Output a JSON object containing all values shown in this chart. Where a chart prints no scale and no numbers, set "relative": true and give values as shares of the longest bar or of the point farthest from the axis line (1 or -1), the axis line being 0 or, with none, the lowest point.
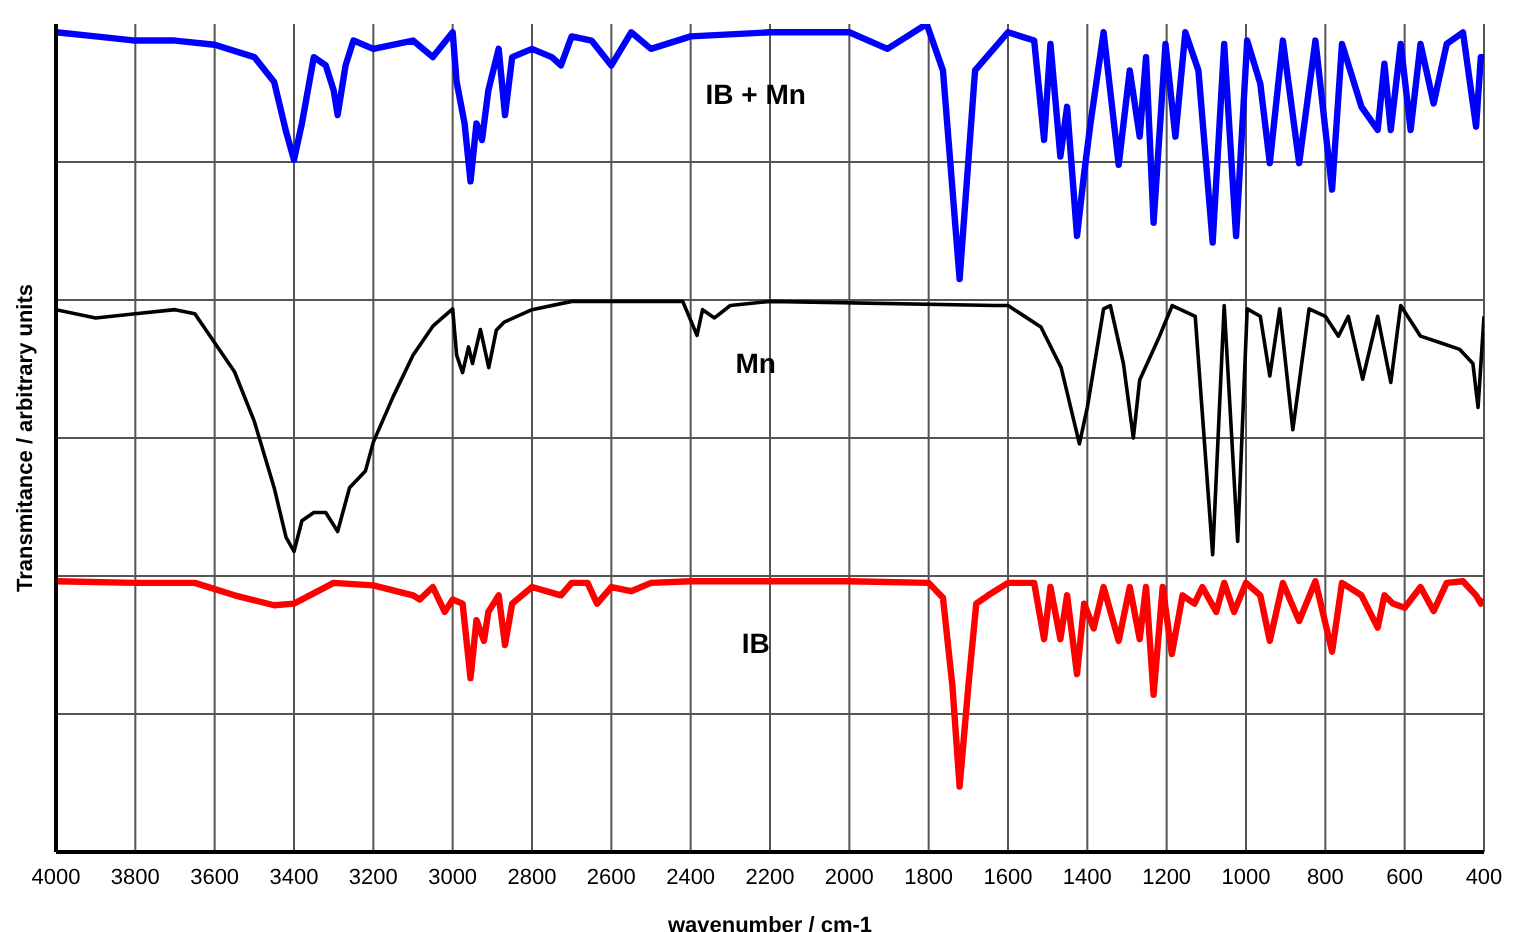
{
  "chart_data": {
    "type": "line",
    "relative": true,
    "xlabel": "wavenumber / cm-1",
    "ylabel": "Transmitance / arbitrary units",
    "xlim": [
      4000,
      400
    ],
    "xticks": [
      4000,
      3800,
      3600,
      3400,
      3200,
      3000,
      2800,
      2600,
      2400,
      2200,
      2000,
      1800,
      1600,
      1400,
      1200,
      1000,
      800,
      600,
      400
    ],
    "grid": true,
    "marker": "none",
    "line_style": "solid",
    "series": [
      {
        "name": "IB + Mn",
        "color": "#0000ff",
        "x": [
          4000,
          3900,
          3800,
          3700,
          3600,
          3500,
          3450,
          3420,
          3400,
          3380,
          3350,
          3320,
          3300,
          3290,
          3270,
          3250,
          3200,
          3100,
          3050,
          3000,
          2990,
          2970,
          2955,
          2940,
          2926,
          2910,
          2884,
          2868,
          2850,
          2800,
          2750,
          2727,
          2700,
          2650,
          2600,
          2550,
          2500,
          2400,
          2200,
          2000,
          1904,
          1805,
          1764,
          1722,
          1683,
          1600,
          1534,
          1509,
          1493,
          1468,
          1451,
          1426,
          1408,
          1392,
          1359,
          1321,
          1293,
          1268,
          1252,
          1233,
          1203,
          1178,
          1153,
          1120,
          1084,
          1055,
          1025,
          997,
          964,
          940,
          907,
          866,
          825,
          783,
          758,
          709,
          668,
          651,
          635,
          610,
          585,
          560,
          527,
          494,
          453,
          420,
          408,
          400
        ],
        "values": [
          0.99,
          0.985,
          0.98,
          0.98,
          0.975,
          0.96,
          0.93,
          0.87,
          0.836,
          0.88,
          0.96,
          0.95,
          0.92,
          0.89,
          0.95,
          0.98,
          0.97,
          0.98,
          0.96,
          0.99,
          0.93,
          0.88,
          0.81,
          0.88,
          0.86,
          0.92,
          0.97,
          0.89,
          0.96,
          0.97,
          0.96,
          0.95,
          0.985,
          0.98,
          0.95,
          0.99,
          0.97,
          0.985,
          0.99,
          0.99,
          0.97,
          1,
          0.944,
          0.692,
          0.944,
          0.99,
          0.98,
          0.86,
          0.976,
          0.84,
          0.9,
          0.744,
          0.82,
          0.88,
          0.99,
          0.83,
          0.944,
          0.864,
          0.96,
          0.76,
          0.976,
          0.864,
          0.99,
          0.944,
          0.736,
          0.976,
          0.744,
          0.98,
          0.928,
          0.832,
          0.98,
          0.832,
          0.98,
          0.8,
          0.976,
          0.9,
          0.872,
          0.952,
          0.872,
          0.976,
          0.872,
          0.976,
          0.904,
          0.976,
          0.99,
          0.876,
          0.96,
          0.96
        ]
      },
      {
        "name": "Mn",
        "color": "#000000",
        "x": [
          4000,
          3900,
          3800,
          3700,
          3650,
          3600,
          3550,
          3500,
          3450,
          3420,
          3400,
          3380,
          3350,
          3320,
          3290,
          3260,
          3220,
          3200,
          3150,
          3100,
          3050,
          3000,
          2990,
          2975,
          2960,
          2950,
          2930,
          2909,
          2890,
          2870,
          2800,
          2700,
          2600,
          2420,
          2384,
          2370,
          2340,
          2300,
          2200,
          1633,
          1600,
          1517,
          1466,
          1420,
          1400,
          1359,
          1342,
          1309,
          1284,
          1268,
          1218,
          1186,
          1128,
          1084,
          1055,
          1021,
          997,
          964,
          940,
          915,
          882,
          841,
          800,
          767,
          742,
          706,
          668,
          635,
          610,
          560,
          510,
          461,
          428,
          415,
          400
        ],
        "values": [
          0.655,
          0.645,
          0.65,
          0.655,
          0.65,
          0.615,
          0.58,
          0.52,
          0.44,
          0.38,
          0.363,
          0.4,
          0.41,
          0.41,
          0.387,
          0.44,
          0.46,
          0.495,
          0.55,
          0.6,
          0.635,
          0.656,
          0.6,
          0.579,
          0.61,
          0.59,
          0.631,
          0.585,
          0.63,
          0.64,
          0.655,
          0.665,
          0.665,
          0.665,
          0.624,
          0.655,
          0.645,
          0.66,
          0.665,
          0.66,
          0.66,
          0.634,
          0.585,
          0.493,
          0.537,
          0.656,
          0.66,
          0.59,
          0.5,
          0.57,
          0.623,
          0.66,
          0.647,
          0.359,
          0.66,
          0.375,
          0.656,
          0.647,
          0.575,
          0.656,
          0.51,
          0.656,
          0.647,
          0.623,
          0.647,
          0.571,
          0.647,
          0.567,
          0.66,
          0.623,
          0.615,
          0.607,
          0.59,
          0.537,
          0.647
        ]
      },
      {
        "name": "IB",
        "color": "#ff0000",
        "x": [
          4000,
          3800,
          3650,
          3550,
          3450,
          3400,
          3300,
          3200,
          3100,
          3083,
          3050,
          3020,
          3000,
          2975,
          2955,
          2940,
          2921,
          2910,
          2884,
          2868,
          2850,
          2800,
          2727,
          2700,
          2660,
          2636,
          2600,
          2550,
          2500,
          2400,
          2000,
          1800,
          1764,
          1740,
          1722,
          1700,
          1680,
          1650,
          1600,
          1534,
          1509,
          1493,
          1468,
          1451,
          1426,
          1408,
          1384,
          1359,
          1321,
          1293,
          1268,
          1252,
          1233,
          1210,
          1187,
          1160,
          1130,
          1110,
          1075,
          1055,
          1030,
          1000,
          964,
          940,
          907,
          866,
          825,
          783,
          758,
          709,
          668,
          651,
          630,
          600,
          560,
          527,
          494,
          453,
          420,
          408,
          400
        ],
        "values": [
          0.327,
          0.325,
          0.325,
          0.31,
          0.298,
          0.3,
          0.325,
          0.322,
          0.31,
          0.305,
          0.32,
          0.29,
          0.305,
          0.3,
          0.21,
          0.28,
          0.255,
          0.29,
          0.31,
          0.25,
          0.3,
          0.32,
          0.31,
          0.325,
          0.325,
          0.3,
          0.32,
          0.315,
          0.325,
          0.327,
          0.327,
          0.325,
          0.307,
          0.2,
          0.079,
          0.2,
          0.3,
          0.31,
          0.325,
          0.325,
          0.257,
          0.32,
          0.257,
          0.31,
          0.215,
          0.3,
          0.27,
          0.32,
          0.255,
          0.32,
          0.257,
          0.32,
          0.19,
          0.32,
          0.239,
          0.31,
          0.3,
          0.32,
          0.29,
          0.325,
          0.29,
          0.325,
          0.31,
          0.255,
          0.325,
          0.279,
          0.327,
          0.242,
          0.325,
          0.31,
          0.271,
          0.31,
          0.3,
          0.295,
          0.32,
          0.291,
          0.325,
          0.327,
          0.31,
          0.3,
          0.305
        ]
      }
    ]
  }
}
